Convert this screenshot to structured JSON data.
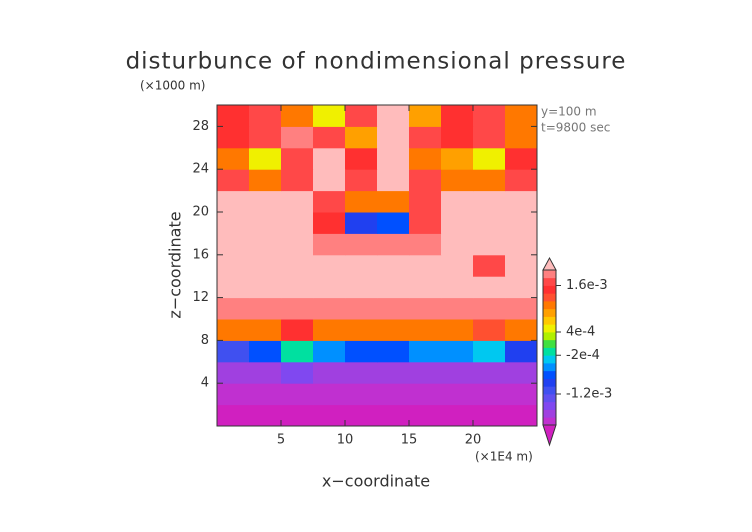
{
  "chart_data": {
    "type": "contour",
    "title": "disturbunce of nondimensional pressure",
    "y_unit": "(×1000 m)",
    "x_unit": "(×1E4 m)",
    "annotations": [
      "y=100 m",
      "t=9800 sec"
    ],
    "xlabel": "x−coordinate",
    "ylabel": "z−coordinate",
    "xlim": [
      0,
      25
    ],
    "ylim": [
      0,
      30
    ],
    "xticks": [
      5,
      10,
      15,
      20
    ],
    "yticks": [
      4,
      8,
      12,
      16,
      20,
      24,
      28
    ],
    "x": [
      1.25,
      3.75,
      6.25,
      8.75,
      11.25,
      13.75,
      16.25,
      18.75,
      21.25,
      23.75
    ],
    "y": [
      1,
      3,
      5,
      7,
      9,
      11,
      13,
      15,
      17,
      19,
      21,
      23,
      25,
      27,
      29
    ],
    "z": [
      [
        -0.0021,
        -0.0021,
        -0.0021,
        -0.0021,
        -0.0021,
        -0.0021,
        -0.0021,
        -0.0021,
        -0.0021,
        -0.0021
      ],
      [
        -0.0019,
        -0.0019,
        -0.0019,
        -0.0019,
        -0.0019,
        -0.0019,
        -0.0019,
        -0.0019,
        -0.0019,
        -0.0019
      ],
      [
        -0.0018,
        -0.0017,
        -0.0015,
        -0.0017,
        -0.0018,
        -0.0018,
        -0.0017,
        -0.0017,
        -0.0016,
        -0.0018
      ],
      [
        -0.0012,
        -0.0008,
        -0.0002,
        -0.0006,
        -0.0008,
        -0.0008,
        -0.0006,
        -0.0005,
        -0.0003,
        -0.001
      ],
      [
        0.001,
        0.0012,
        0.0014,
        0.0012,
        0.0012,
        0.0012,
        0.0012,
        0.0012,
        0.0013,
        0.001
      ],
      [
        0.0018,
        0.0019,
        0.0019,
        0.0019,
        0.0019,
        0.0019,
        0.0019,
        0.0019,
        0.0019,
        0.0018
      ],
      [
        0.0021,
        0.0021,
        0.0021,
        0.0021,
        0.0021,
        0.0021,
        0.0021,
        0.0021,
        0.0021,
        0.0021
      ],
      [
        0.0021,
        0.0021,
        0.0021,
        0.0021,
        0.0021,
        0.0021,
        0.0021,
        0.0021,
        0.0017,
        0.0021
      ],
      [
        0.0021,
        0.0021,
        0.0021,
        0.0019,
        0.0018,
        0.0018,
        0.0019,
        0.0021,
        0.0021,
        0.0021
      ],
      [
        0.0021,
        0.0021,
        0.0021,
        0.0014,
        -0.001,
        -0.0008,
        0.0016,
        0.0021,
        0.0021,
        0.0021
      ],
      [
        0.0021,
        0.0021,
        0.0021,
        0.0017,
        0.001,
        0.0012,
        0.0017,
        0.0021,
        0.0021,
        0.0021
      ],
      [
        0.0016,
        0.001,
        0.0016,
        0.0021,
        0.0016,
        0.0021,
        0.0016,
        0.0012,
        0.001,
        0.0016
      ],
      [
        0.0012,
        0.0004,
        0.0016,
        0.0021,
        0.0014,
        0.0021,
        0.0012,
        0.0008,
        0.0006,
        0.0014
      ],
      [
        0.0014,
        0.0016,
        0.0018,
        0.0016,
        0.0008,
        0.0021,
        0.0016,
        0.0014,
        0.0016,
        0.0012
      ],
      [
        0.0014,
        0.0016,
        0.0012,
        0.0004,
        0.0016,
        0.0021,
        0.0008,
        0.0014,
        0.0016,
        0.0012
      ]
    ],
    "clim": [
      -0.002,
      0.002
    ],
    "colors": [
      "#d020c0",
      "#c030d0",
      "#a040e0",
      "#8048f0",
      "#6050f0",
      "#4050f0",
      "#2040f0",
      "#0050ff",
      "#0090ff",
      "#00c8f0",
      "#00e0a0",
      "#40e040",
      "#b0f000",
      "#f0f000",
      "#ffc800",
      "#ffa000",
      "#ff7800",
      "#ff5030",
      "#ff3030",
      "#ff4848",
      "#ff8080",
      "#ffbcbc"
    ],
    "cticks": [
      {
        "value": 0.0016,
        "label": "1.6e-3"
      },
      {
        "value": 0.0004,
        "label": "4e-4"
      },
      {
        "value": -0.0002,
        "label": "-2e-4"
      },
      {
        "value": -0.0012,
        "label": "-1.2e-3"
      }
    ]
  }
}
